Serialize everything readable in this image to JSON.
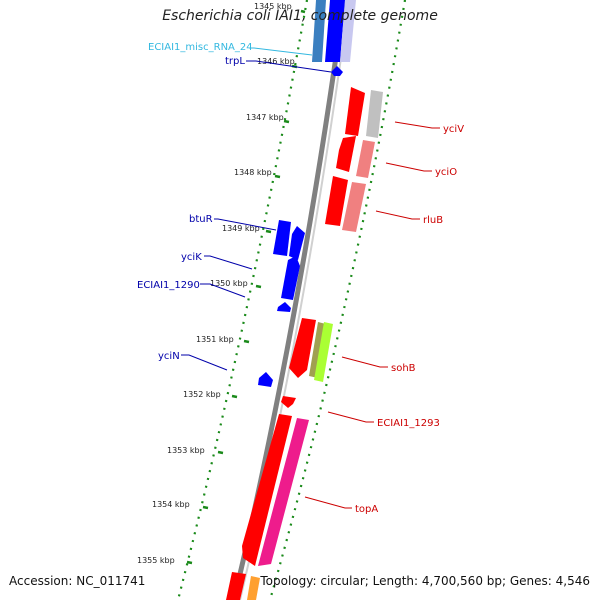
{
  "title": "Escherichia coli IAI1, complete genome",
  "footer": {
    "accession": "Accession: NC_011741",
    "summary": "Topology: circular; Length: 4,700,560 bp; Genes: 4,546"
  },
  "colors": {
    "forward_gene": "#ff0000",
    "reverse_gene": "#0000ff",
    "rna": "#33a0d0",
    "tick": "#1a8a1a",
    "backbone": "#808080"
  },
  "kbp_labels": [
    "1345 kbp",
    "1346 kbp",
    "1347 kbp",
    "1348 kbp",
    "1349 kbp",
    "1350 kbp",
    "1351 kbp",
    "1352 kbp",
    "1353 kbp",
    "1354 kbp",
    "1355 kbp"
  ],
  "left_features": [
    {
      "name": "ECIAI1_misc_RNA_24",
      "color": "#33b8e0"
    },
    {
      "name": "trpL",
      "color": "#0000aa"
    },
    {
      "name": "btuR",
      "color": "#0000aa"
    },
    {
      "name": "yciK",
      "color": "#0000aa"
    },
    {
      "name": "ECIAI1_1290",
      "color": "#0000aa"
    },
    {
      "name": "yciN",
      "color": "#0000aa"
    }
  ],
  "right_features": [
    {
      "name": "yciV",
      "color": "#cc0000"
    },
    {
      "name": "yciO",
      "color": "#cc0000"
    },
    {
      "name": "rluB",
      "color": "#cc0000"
    },
    {
      "name": "sohB",
      "color": "#cc0000"
    },
    {
      "name": "ECIAI1_1293",
      "color": "#cc0000"
    },
    {
      "name": "topA",
      "color": "#cc0000"
    }
  ]
}
